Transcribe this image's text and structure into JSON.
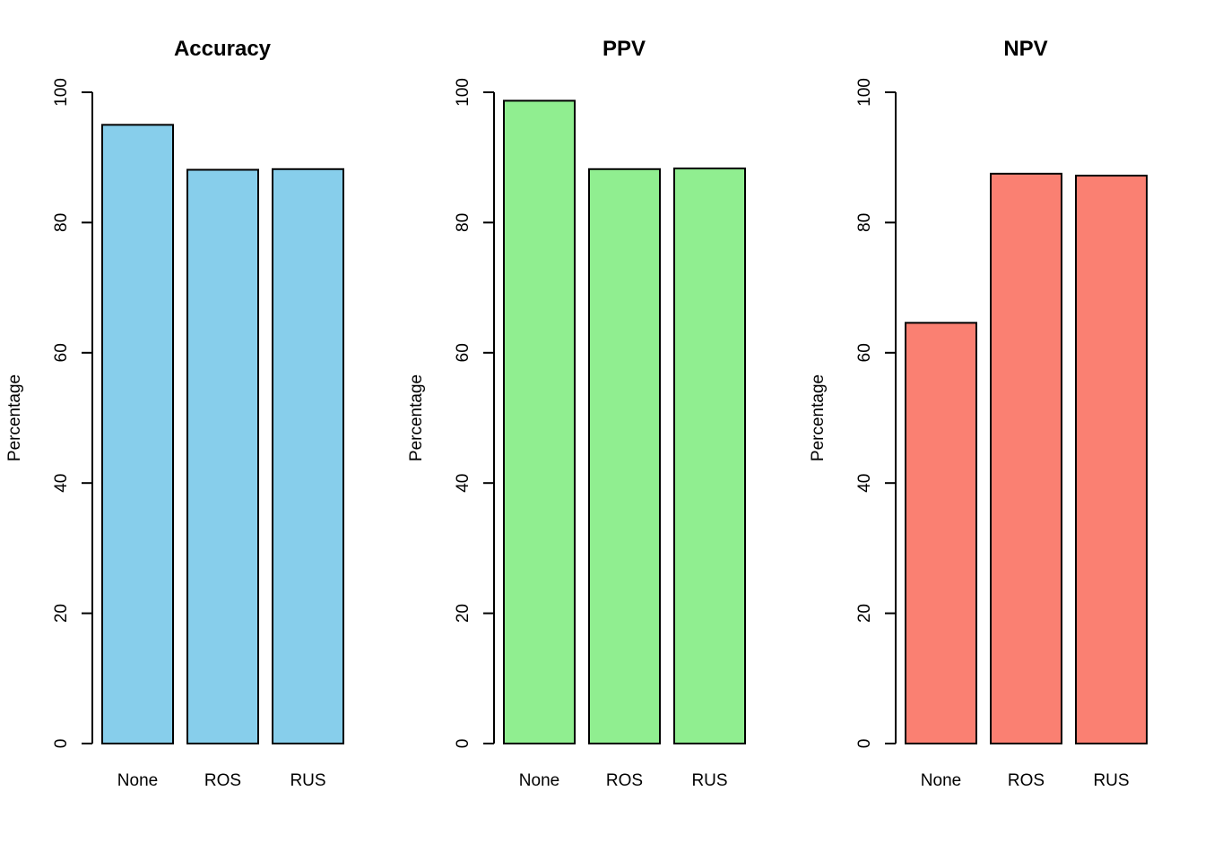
{
  "chart_data": [
    {
      "type": "bar",
      "title": "Accuracy",
      "xlabel": "",
      "ylabel": "Percentage",
      "categories": [
        "None",
        "ROS",
        "RUS"
      ],
      "values": [
        95.0,
        88.1,
        88.2
      ],
      "ylim": [
        0,
        100
      ],
      "yticks": [
        0,
        20,
        40,
        60,
        80,
        100
      ],
      "bar_color": "#87CEEB",
      "grid": false,
      "legend": "none"
    },
    {
      "type": "bar",
      "title": "PPV",
      "xlabel": "",
      "ylabel": "Percentage",
      "categories": [
        "None",
        "ROS",
        "RUS"
      ],
      "values": [
        98.7,
        88.2,
        88.3
      ],
      "ylim": [
        0,
        100
      ],
      "yticks": [
        0,
        20,
        40,
        60,
        80,
        100
      ],
      "bar_color": "#90EE90",
      "grid": false,
      "legend": "none"
    },
    {
      "type": "bar",
      "title": "NPV",
      "xlabel": "",
      "ylabel": "Percentage",
      "categories": [
        "None",
        "ROS",
        "RUS"
      ],
      "values": [
        64.6,
        87.5,
        87.2
      ],
      "ylim": [
        0,
        100
      ],
      "yticks": [
        0,
        20,
        40,
        60,
        80,
        100
      ],
      "bar_color": "#FA8072",
      "grid": false,
      "legend": "none"
    }
  ]
}
